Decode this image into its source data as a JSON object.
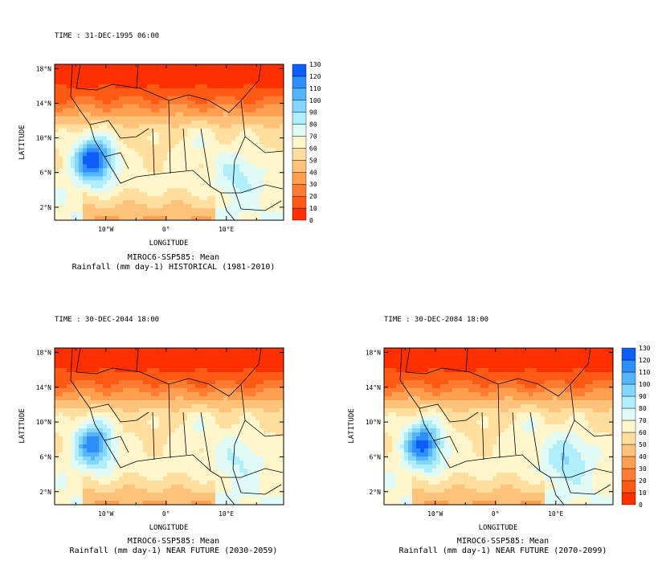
{
  "chart_data": [
    {
      "type": "heatmap",
      "time_label": "TIME : 31-DEC-1995 06:00",
      "model": "MIROC6-SSP585: Mean",
      "caption": "Rainfall (mm day-1) HISTORICAL (1981-2010)",
      "xlabel": "LONGITUDE",
      "ylabel": "LATITUDE",
      "x_ticks": [
        "10°W",
        "0°",
        "10°E"
      ],
      "y_ticks": [
        "2°N",
        "6°N",
        "10°N",
        "14°N",
        "18°N"
      ],
      "xlim": [
        -18.5,
        19.5
      ],
      "ylim": [
        0.5,
        18.5
      ],
      "core_max_mm_day": 125,
      "inland_max_mm_day": 80,
      "has_colorbar": true
    },
    {
      "type": "heatmap",
      "time_label": "TIME : 30-DEC-2044 18:00",
      "model": "MIROC6-SSP585: Mean",
      "caption": "Rainfall (mm day-1) NEAR FUTURE (2030-2059)",
      "xlabel": "LONGITUDE",
      "ylabel": "LATITUDE",
      "x_ticks": [
        "10°W",
        "0°",
        "10°E"
      ],
      "y_ticks": [
        "2°N",
        "6°N",
        "10°N",
        "14°N",
        "18°N"
      ],
      "xlim": [
        -18.5,
        19.5
      ],
      "ylim": [
        0.5,
        18.5
      ],
      "core_max_mm_day": 112,
      "inland_max_mm_day": 78,
      "has_colorbar": false
    },
    {
      "type": "heatmap",
      "time_label": "TIME : 30-DEC-2084 18:00",
      "model": "MIROC6-SSP585: Mean",
      "caption": "Rainfall (mm day-1) NEAR FUTURE (2070-2099)",
      "xlabel": "LONGITUDE",
      "ylabel": "LATITUDE",
      "x_ticks": [
        "10°W",
        "0°",
        "10°E"
      ],
      "y_ticks": [
        "2°N",
        "6°N",
        "10°N",
        "14°N",
        "18°N"
      ],
      "xlim": [
        -18.5,
        19.5
      ],
      "ylim": [
        0.5,
        18.5
      ],
      "core_max_mm_day": 118,
      "inland_max_mm_day": 88,
      "has_colorbar": true
    }
  ],
  "colorbar": {
    "levels": [
      0,
      10,
      20,
      30,
      40,
      50,
      60,
      70,
      80,
      90,
      100,
      110,
      120,
      130
    ],
    "colors": [
      "#ff3000",
      "#ff5a14",
      "#ff7d32",
      "#ffa050",
      "#ffc27a",
      "#ffde9e",
      "#fff6cc",
      "#e0fbf6",
      "#b0eefc",
      "#84d6fc",
      "#56b4fb",
      "#2f8ffa",
      "#0d5df8"
    ]
  }
}
